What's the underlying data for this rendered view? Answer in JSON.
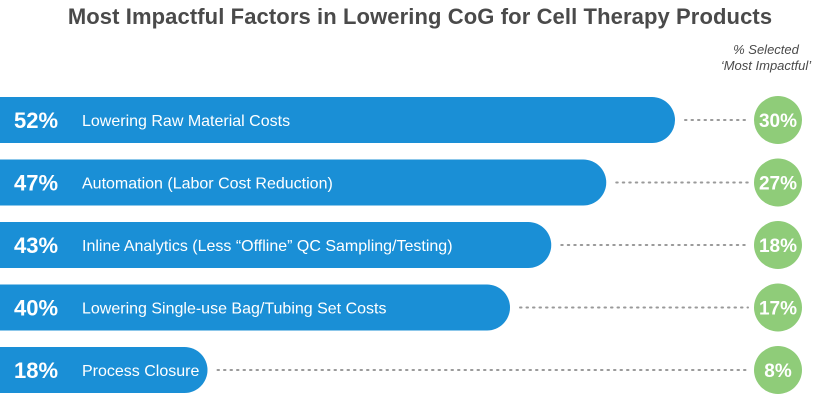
{
  "chart_data": {
    "type": "bar",
    "orientation": "horizontal",
    "title": "Most Impactful Factors in Lowering CoG for Cell Therapy Products",
    "secondary_header": [
      "% Selected",
      "‘Most Impactful’"
    ],
    "categories": [
      "Lowering Raw Material Costs",
      "Automation (Labor Cost Reduction)",
      "Inline Analytics (Less “Offline” QC Sampling/Testing)",
      "Lowering Single-use Bag/Tubing Set Costs",
      "Process Closure"
    ],
    "values": [
      52,
      47,
      43,
      40,
      18
    ],
    "value_labels": [
      "52%",
      "47%",
      "43%",
      "40%",
      "18%"
    ],
    "most_impactful": [
      30,
      27,
      18,
      17,
      8
    ],
    "most_impactful_labels": [
      "30%",
      "27%",
      "18%",
      "17%",
      "8%"
    ],
    "xlim": [
      0,
      55
    ],
    "grid": false,
    "colors": {
      "bar": "#1a8fd6",
      "circle": "#8fcc79",
      "dots": "#9a9a9a",
      "title": "#4a4a4a",
      "text_on_bar": "#ffffff"
    }
  }
}
